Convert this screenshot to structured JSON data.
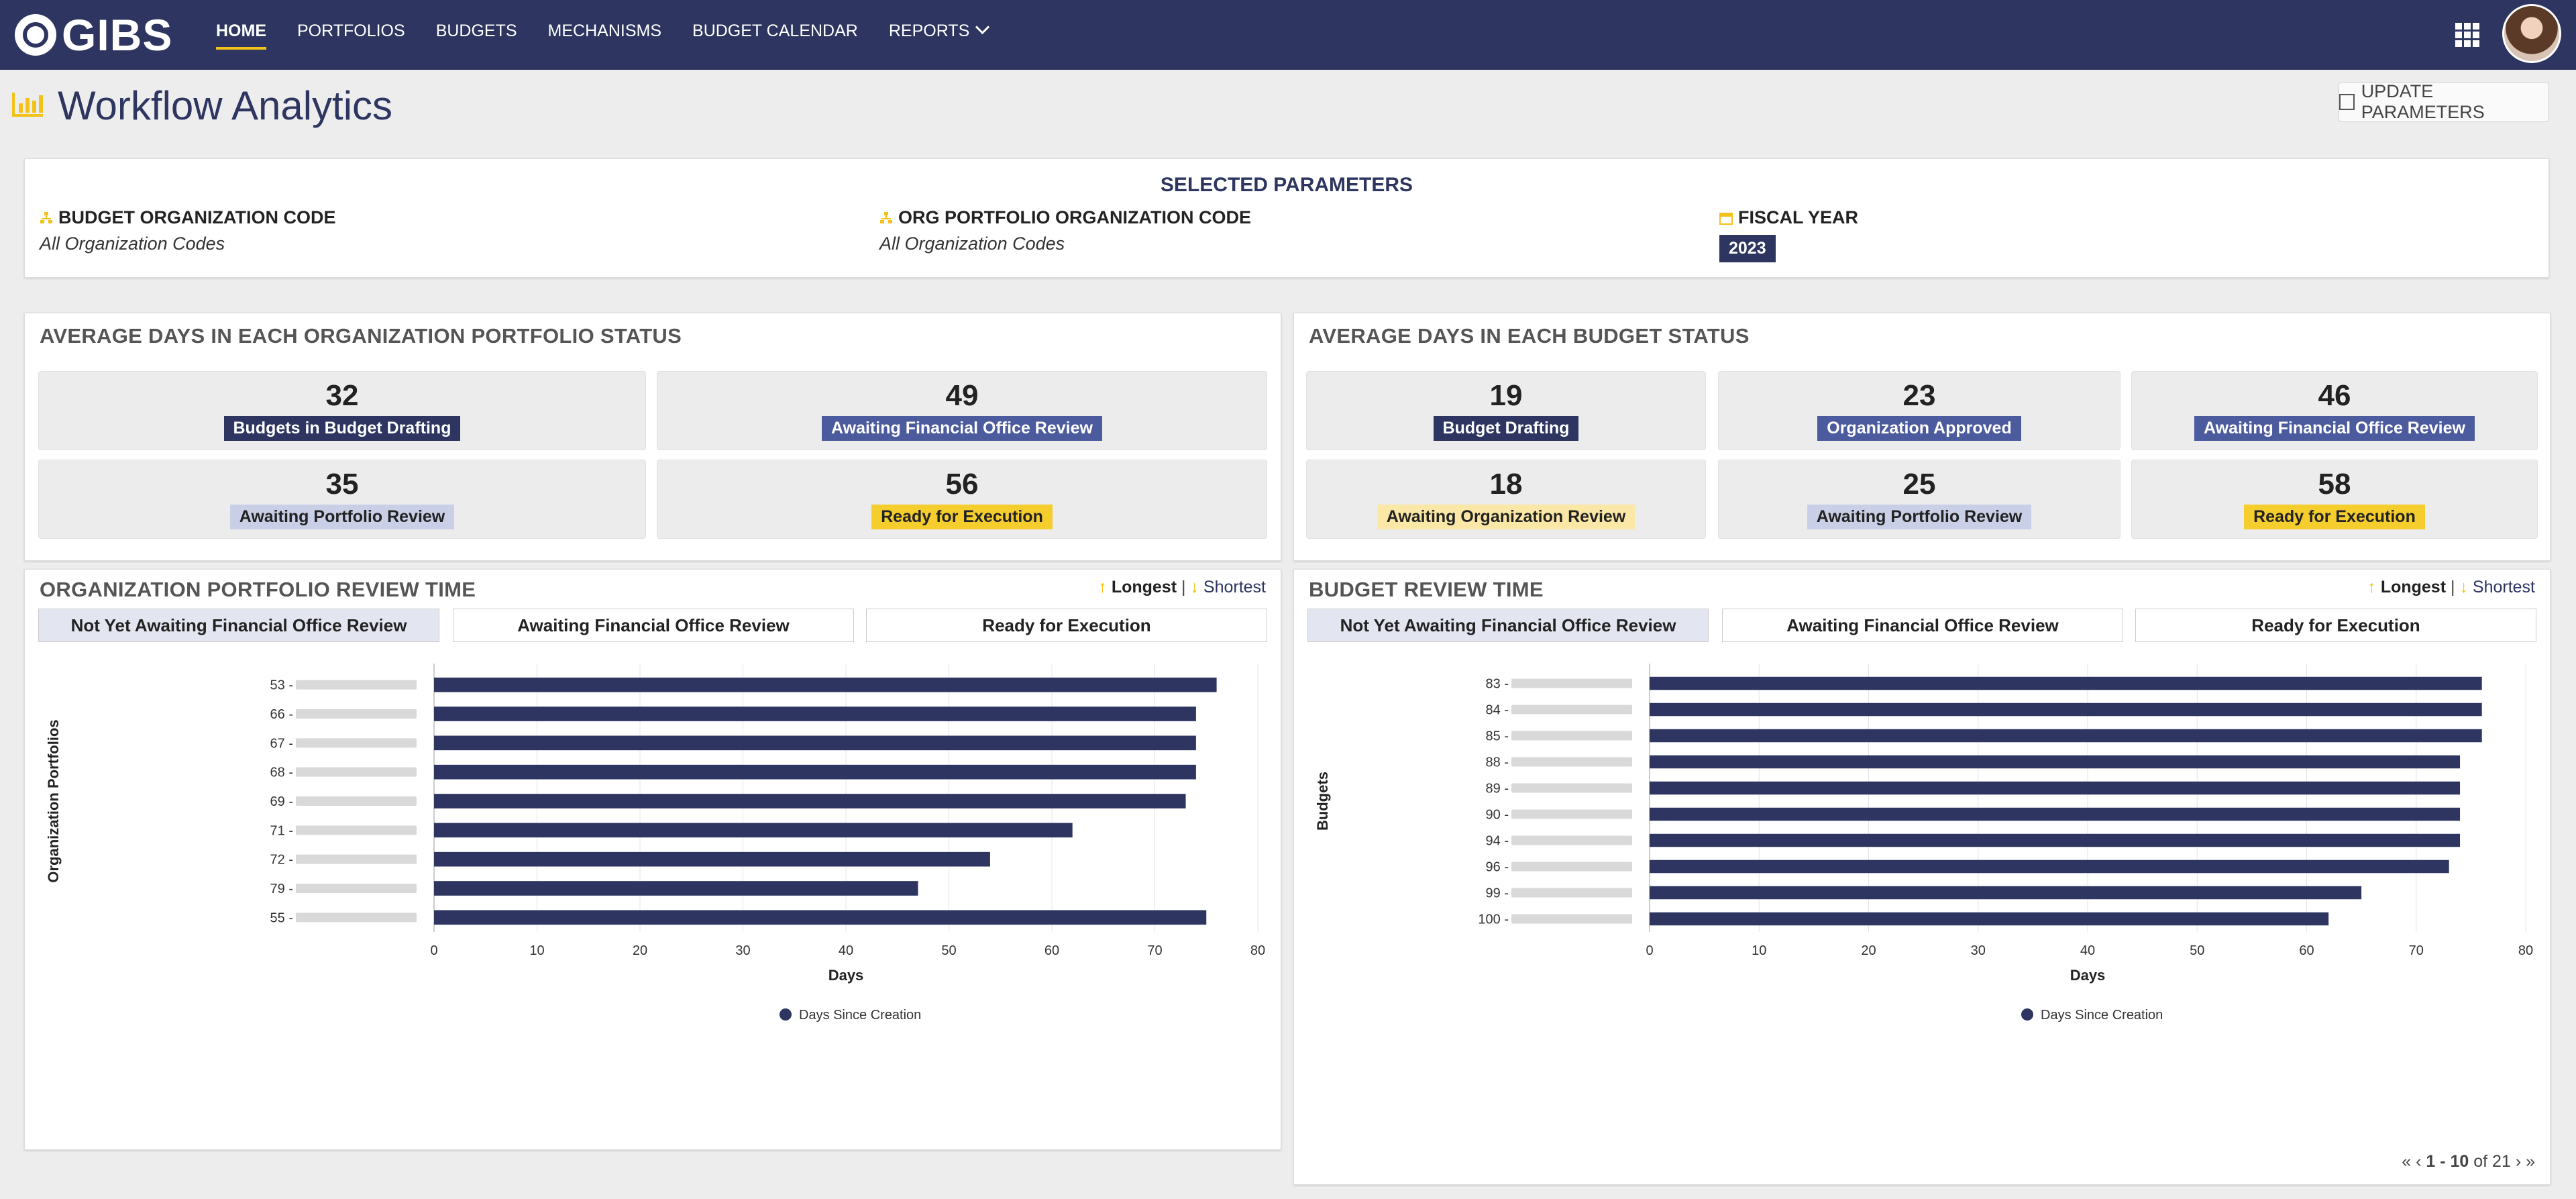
{
  "nav": {
    "logo_text": "GIBS",
    "items": [
      {
        "label": "HOME",
        "active": true
      },
      {
        "label": "PORTFOLIOS",
        "active": false
      },
      {
        "label": "BUDGETS",
        "active": false
      },
      {
        "label": "MECHANISMS",
        "active": false
      },
      {
        "label": "BUDGET CALENDAR",
        "active": false
      },
      {
        "label": "REPORTS",
        "active": false,
        "has_dropdown": true
      }
    ],
    "apps_icon": "grid-icon",
    "avatar_icon": "user-avatar"
  },
  "page": {
    "title": "Workflow Analytics",
    "title_icon": "bar-chart-icon",
    "update_button": "UPDATE PARAMETERS",
    "update_icon": "edit-icon"
  },
  "params": {
    "heading": "SELECTED PARAMETERS",
    "budget_org": {
      "label": "BUDGET ORGANIZATION CODE",
      "value": "All Organization Codes"
    },
    "portfolio_org": {
      "label": "ORG PORTFOLIO ORGANIZATION CODE",
      "value": "All Organization Codes"
    },
    "fiscal_year": {
      "label": "FISCAL YEAR",
      "value": "2023"
    }
  },
  "portfolio_status": {
    "title": "AVERAGE DAYS IN EACH ORGANIZATION PORTFOLIO STATUS",
    "items": [
      {
        "value": "32",
        "label": "Budgets in Budget Drafting",
        "style": "navy"
      },
      {
        "value": "49",
        "label": "Awaiting Financial Office Review",
        "style": "blue"
      },
      {
        "value": "35",
        "label": "Awaiting Portfolio Review",
        "style": "light"
      },
      {
        "value": "56",
        "label": "Ready for Execution",
        "style": "yellow"
      }
    ]
  },
  "budget_status": {
    "title": "AVERAGE DAYS IN EACH BUDGET STATUS",
    "items": [
      {
        "value": "19",
        "label": "Budget Drafting",
        "style": "navy"
      },
      {
        "value": "23",
        "label": "Organization Approved",
        "style": "blue"
      },
      {
        "value": "46",
        "label": "Awaiting Financial Office Review",
        "style": "blue"
      },
      {
        "value": "18",
        "label": "Awaiting Organization Review",
        "style": "paleyellow"
      },
      {
        "value": "25",
        "label": "Awaiting Portfolio Review",
        "style": "light"
      },
      {
        "value": "58",
        "label": "Ready for Execution",
        "style": "yellow"
      }
    ]
  },
  "sort": {
    "longest": "Longest",
    "separator": "|",
    "shortest": "Shortest"
  },
  "tabs": [
    "Not Yet Awaiting Financial Office Review",
    "Awaiting Financial Office Review",
    "Ready for Execution"
  ],
  "portfolio_review": {
    "title": "ORGANIZATION PORTFOLIO REVIEW TIME"
  },
  "budget_review": {
    "title": "BUDGET REVIEW TIME",
    "pager": {
      "range": "1 - 10",
      "of_text": "of 21"
    }
  },
  "chart_data": [
    {
      "type": "bar",
      "orientation": "horizontal",
      "categories": [
        "53 -",
        "66 -",
        "67 -",
        "68 -",
        "69 -",
        "71 -",
        "72 -",
        "79 -",
        "55 -"
      ],
      "series": [
        {
          "name": "Days Since Creation",
          "values": [
            76,
            74,
            74,
            74,
            73,
            62,
            54,
            47,
            75
          ]
        }
      ],
      "xlabel": "Days",
      "ylabel": "Organization Portfolios",
      "xlim": [
        0,
        80
      ],
      "xticks": [
        0,
        10,
        20,
        30,
        40,
        50,
        60,
        70,
        80
      ],
      "legend": "bottom",
      "color": "#2d3560",
      "grid": true
    },
    {
      "type": "bar",
      "orientation": "horizontal",
      "categories": [
        "83 -",
        "84 -",
        "85 -",
        "88 -",
        "89 -",
        "90 -",
        "94 -",
        "96 -",
        "99 -",
        "100 -"
      ],
      "series": [
        {
          "name": "Days Since Creation",
          "values": [
            76,
            76,
            76,
            74,
            74,
            74,
            74,
            73,
            65,
            62
          ]
        }
      ],
      "xlabel": "Days",
      "ylabel": "Budgets",
      "xlim": [
        0,
        80
      ],
      "xticks": [
        0,
        10,
        20,
        30,
        40,
        50,
        60,
        70,
        80
      ],
      "legend": "bottom",
      "color": "#2d3560",
      "grid": true
    }
  ]
}
